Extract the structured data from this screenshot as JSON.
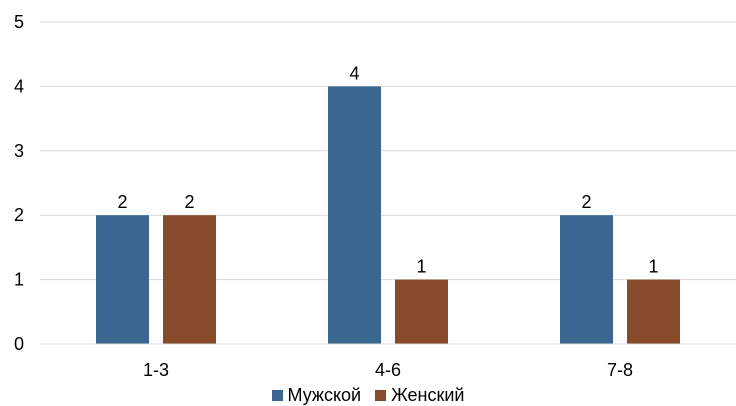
{
  "chart_data": {
    "type": "bar",
    "categories": [
      "1-3",
      "4-6",
      "7-8"
    ],
    "series": [
      {
        "name": "Мужской",
        "values": [
          2,
          4,
          2
        ],
        "color": "#3A6690"
      },
      {
        "name": "Женский",
        "values": [
          2,
          1,
          1
        ],
        "color": "#884A2D"
      }
    ],
    "ylim": [
      0,
      5
    ],
    "yticks": [
      "0",
      "1",
      "2",
      "3",
      "4",
      "5"
    ],
    "grid": true,
    "legend": "bottom",
    "data_labels": true
  }
}
